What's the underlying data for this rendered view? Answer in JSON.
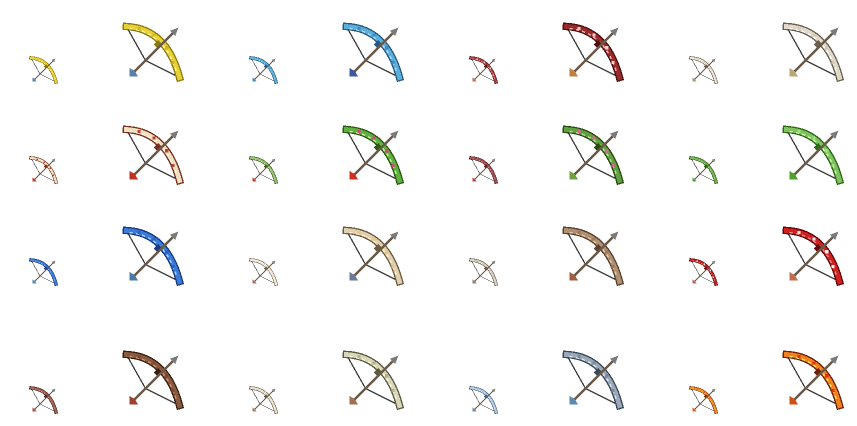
{
  "sprite_sheet": {
    "background": "#ffffff",
    "string_color": "#3a3a3a",
    "arrow_shaft_color": "#6b5a4a",
    "arrow_head_color": "#7a7a7a",
    "rows": [
      {
        "bows": [
          {
            "name": "gold-bow-small",
            "size": "small",
            "icon": "bow-icon",
            "limb": "#e8d233",
            "limb_dark": "#8a7a10",
            "limb_light": "#fff6a0",
            "accent": "#f0c020",
            "fletch": "#5a7fa8"
          },
          {
            "name": "gold-bow-large",
            "size": "large",
            "icon": "bow-icon",
            "limb": "#e8d233",
            "limb_dark": "#8a7a10",
            "limb_light": "#fff6a0",
            "accent": "#d8b020",
            "fletch": "#5a7fa8"
          },
          {
            "name": "azure-bow-small",
            "size": "small",
            "icon": "bow-icon",
            "limb": "#5aaedc",
            "limb_dark": "#2a5a80",
            "limb_light": "#a8dcf5",
            "accent": "#5aaedc",
            "fletch": "#4a8ab8"
          },
          {
            "name": "azure-bow-large",
            "size": "large",
            "icon": "bow-icon",
            "limb": "#5aaedc",
            "limb_dark": "#2a5a80",
            "limb_light": "#a8dcf5",
            "accent": "#3a8ac8",
            "fletch": "#3a5a9a"
          },
          {
            "name": "rose-bow-small",
            "size": "small",
            "icon": "bow-icon",
            "limb": "#b04040",
            "limb_dark": "#5a1a1a",
            "limb_light": "#f0a0a0",
            "accent": "#e8c0c0",
            "fletch": "#c07050"
          },
          {
            "name": "rose-bow-large",
            "size": "large",
            "icon": "bow-icon",
            "limb": "#9a2a2a",
            "limb_dark": "#4a1010",
            "limb_light": "#f0b0b0",
            "accent": "#f0d0d0",
            "fletch": "#c08040"
          },
          {
            "name": "bone-bow-small",
            "size": "small",
            "icon": "bow-icon",
            "limb": "#e8e0d0",
            "limb_dark": "#6a6050",
            "limb_light": "#ffffff",
            "accent": "#d8d0c0",
            "fletch": "#a89878"
          },
          {
            "name": "bone-bow-large",
            "size": "large",
            "icon": "bow-icon",
            "limb": "#e0d8c8",
            "limb_dark": "#6a6050",
            "limb_light": "#ffffff",
            "accent": "#d0c8b8",
            "fletch": "#b8a878"
          }
        ]
      },
      {
        "bows": [
          {
            "name": "ivory-bow-small",
            "size": "small",
            "icon": "bow-icon",
            "limb": "#f0e0c0",
            "limb_dark": "#7a3020",
            "limb_light": "#fff8e8",
            "accent": "#c04030",
            "fletch": "#c04030"
          },
          {
            "name": "ivory-bow-large",
            "size": "large",
            "icon": "bow-icon",
            "limb": "#f0e0c0",
            "limb_dark": "#7a3020",
            "limb_light": "#fff8e8",
            "accent": "#c04030",
            "fletch": "#c03020"
          },
          {
            "name": "fern-bow-small",
            "size": "small",
            "icon": "bow-icon",
            "limb": "#90c070",
            "limb_dark": "#3a5a20",
            "limb_light": "#d0f0b0",
            "accent": "#90c070",
            "fletch": "#c04030"
          },
          {
            "name": "fern-bow-large",
            "size": "large",
            "icon": "bow-icon",
            "limb": "#60b040",
            "limb_dark": "#2a5a10",
            "limb_light": "#c0f0a0",
            "accent": "#e04080",
            "fletch": "#d03020"
          },
          {
            "name": "thorn-bow-small",
            "size": "small",
            "icon": "bow-icon",
            "limb": "#a05050",
            "limb_dark": "#5a2020",
            "limb_light": "#e0a0a0",
            "accent": "#a05050",
            "fletch": "#c04040"
          },
          {
            "name": "blossom-bow-large",
            "size": "large",
            "icon": "bow-icon",
            "limb": "#60a040",
            "limb_dark": "#2a4a10",
            "limb_light": "#b0e090",
            "accent": "#e060a0",
            "fletch": "#70a040"
          },
          {
            "name": "leaf-bow-small",
            "size": "small",
            "icon": "bow-icon",
            "limb": "#70b050",
            "limb_dark": "#2a5a10",
            "limb_light": "#c0f0a0",
            "accent": "#70b050",
            "fletch": "#50a040"
          },
          {
            "name": "leaf-bow-large",
            "size": "large",
            "icon": "bow-icon",
            "limb": "#80c060",
            "limb_dark": "#2a6a10",
            "limb_light": "#d0f8b0",
            "accent": "#a0e080",
            "fletch": "#50a030"
          }
        ]
      },
      {
        "bows": [
          {
            "name": "sapphire-bow-small",
            "size": "small",
            "icon": "bow-icon",
            "limb": "#3a7ad8",
            "limb_dark": "#1a3a80",
            "limb_light": "#9ac8f8",
            "accent": "#3a7ad8",
            "fletch": "#4a8ab8"
          },
          {
            "name": "sapphire-bow-large",
            "size": "large",
            "icon": "bow-icon",
            "limb": "#3a7ad8",
            "limb_dark": "#1a3a80",
            "limb_light": "#a0d0ff",
            "accent": "#2a60c0",
            "fletch": "#4a7aa8"
          },
          {
            "name": "pearl-bow-small",
            "size": "small",
            "icon": "bow-icon",
            "limb": "#f0e8d8",
            "limb_dark": "#7a6a5a",
            "limb_light": "#ffffff",
            "accent": "#f0e8d8",
            "fletch": "#a07060"
          },
          {
            "name": "checker-bow-large",
            "size": "large",
            "icon": "bow-icon",
            "limb": "#e0d0b0",
            "limb_dark": "#6a5a40",
            "limb_light": "#fff0d0",
            "accent": "#e8c880",
            "fletch": "#6a7a9a"
          },
          {
            "name": "ash-bow-small",
            "size": "small",
            "icon": "bow-icon",
            "limb": "#d8d0c0",
            "limb_dark": "#6a5a50",
            "limb_light": "#f8f0e0",
            "accent": "#c8b8a8",
            "fletch": "#9a7a6a"
          },
          {
            "name": "oak-bow-large",
            "size": "large",
            "icon": "bow-icon",
            "limb": "#b09070",
            "limb_dark": "#5a4030",
            "limb_light": "#e0c8a8",
            "accent": "#9a7a5a",
            "fletch": "#a06040"
          },
          {
            "name": "crimson-bow-small",
            "size": "small",
            "icon": "bow-icon",
            "limb": "#c82020",
            "limb_dark": "#601010",
            "limb_light": "#f09090",
            "accent": "#e0e0e0",
            "fletch": "#c06060"
          },
          {
            "name": "crimson-bow-large",
            "size": "large",
            "icon": "bow-icon",
            "limb": "#d02020",
            "limb_dark": "#600808",
            "limb_light": "#f08080",
            "accent": "#f0f0f0",
            "fletch": "#c07050"
          }
        ]
      },
      {
        "bows": [
          {
            "name": "walnut-bow-small",
            "size": "small",
            "icon": "bow-icon",
            "limb": "#a06050",
            "limb_dark": "#4a2020",
            "limb_light": "#d8a090",
            "accent": "#a06050",
            "fletch": "#b05040"
          },
          {
            "name": "walnut-bow-large",
            "size": "large",
            "icon": "bow-icon",
            "limb": "#8a5a40",
            "limb_dark": "#3a2010",
            "limb_light": "#c89070",
            "accent": "#7a4a30",
            "fletch": "#a04030"
          },
          {
            "name": "birch-bow-small",
            "size": "small",
            "icon": "bow-icon",
            "limb": "#e8e0c8",
            "limb_dark": "#6a6050",
            "limb_light": "#ffffff",
            "accent": "#e0d8c0",
            "fletch": "#a08068"
          },
          {
            "name": "lichen-bow-large",
            "size": "large",
            "icon": "bow-icon",
            "limb": "#d8d8b8",
            "limb_dark": "#5a5a40",
            "limb_light": "#f8f8e0",
            "accent": "#b0b090",
            "fletch": "#a07050"
          },
          {
            "name": "frost-bow-small",
            "size": "small",
            "icon": "bow-icon",
            "limb": "#b0c8e0",
            "limb_dark": "#4a6080",
            "limb_light": "#e8f4ff",
            "accent": "#b0c8e0",
            "fletch": "#6a8aa8"
          },
          {
            "name": "steel-bow-large",
            "size": "large",
            "icon": "bow-icon",
            "limb": "#9aa8b8",
            "limb_dark": "#3a4858",
            "limb_light": "#d8e4f0",
            "accent": "#7a8898",
            "fletch": "#5a8ab0"
          },
          {
            "name": "ember-bow-small",
            "size": "small",
            "icon": "bow-icon",
            "limb": "#f09020",
            "limb_dark": "#803008",
            "limb_light": "#ffd060",
            "accent": "#f06010",
            "fletch": "#e06020"
          },
          {
            "name": "inferno-bow-large",
            "size": "large",
            "icon": "bow-icon",
            "limb": "#f08020",
            "limb_dark": "#702008",
            "limb_light": "#ffe060",
            "accent": "#e03010",
            "fletch": "#d05010"
          }
        ]
      }
    ]
  }
}
